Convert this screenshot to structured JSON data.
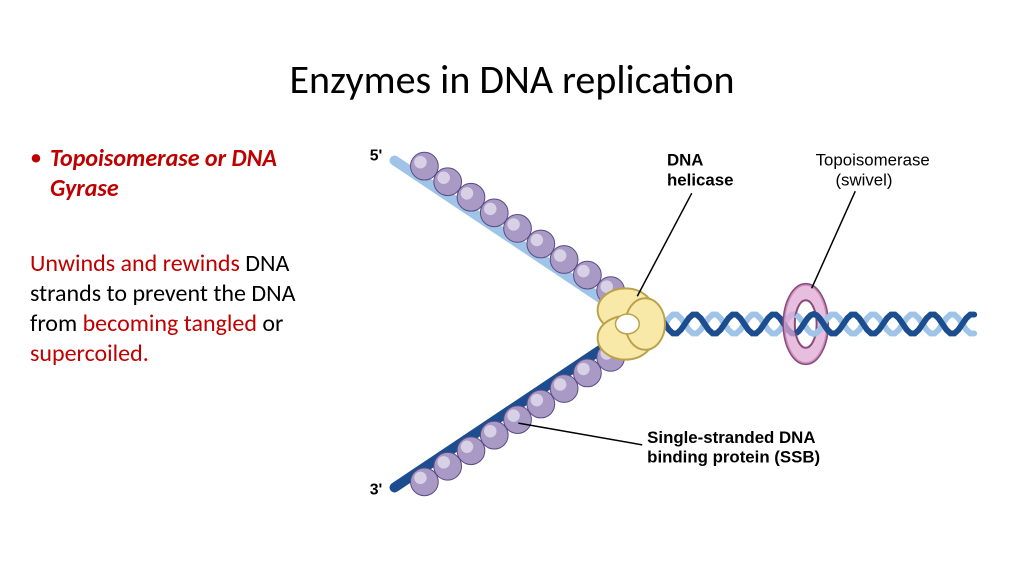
{
  "title": "Enzymes in DNA replication",
  "bullet": {
    "label": "Topoisomerase or DNA Gyrase"
  },
  "description": {
    "p1": "Unwinds and rewinds",
    "p2": " DNA strands to prevent the DNA from ",
    "p3": "becoming tangled",
    "p4": " or ",
    "p5": "supercoiled."
  },
  "diagram": {
    "type": "biological-diagram",
    "labels": {
      "fiveprime": "5'",
      "threeprime": "3'",
      "helicase": "DNA helicase",
      "topoisomerase_l1": "Topoisomerase",
      "topoisomerase_l2": "(swivel)",
      "ssb_l1": "Single-stranded DNA",
      "ssb_l2": "binding protein (SSB)"
    },
    "colors": {
      "title_text": "#000000",
      "accent_red": "#c00000",
      "body_text": "#000000",
      "label_text": "#000000",
      "strand_blue_dark": "#1b4d8f",
      "strand_blue_light": "#9fc4e8",
      "ssb_fill": "#a89ac5",
      "ssb_stroke": "#5b4b85",
      "helicase_fill": "#f8e9a9",
      "helicase_stroke": "#bba24a",
      "topo_fill": "#e0a8d4",
      "topo_stroke": "#8a4b7c",
      "white": "#ffffff"
    },
    "font": {
      "title_size": 40,
      "body_size": 24,
      "label_size": 17,
      "label_bold_size": 17,
      "end_label_size": 16
    },
    "geometry": {
      "ssb_radius": 14,
      "helix_wavelength": 40,
      "helix_amplitude": 10,
      "strand_width_light": 10,
      "strand_width_dark": 10
    }
  }
}
